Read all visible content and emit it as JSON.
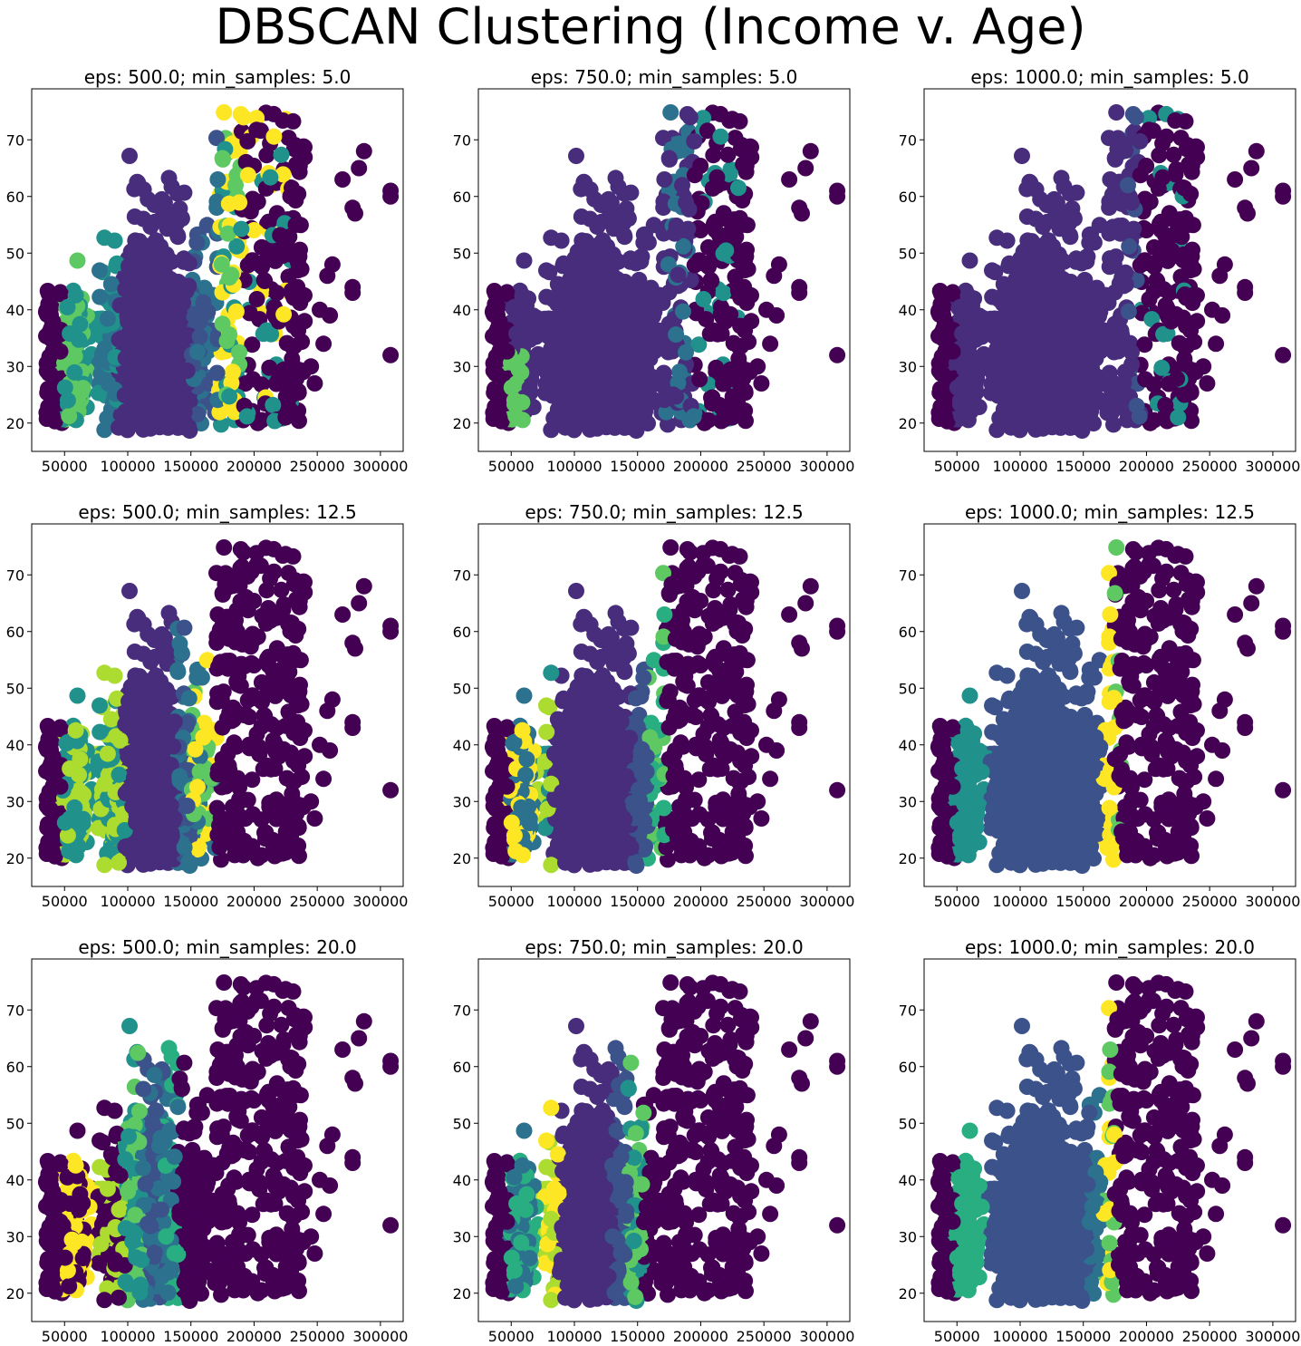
{
  "title": "DBSCAN Clustering (Income v. Age)",
  "palette": {
    "noise": "#440154",
    "c1": "#472d7b",
    "c2": "#3b528b",
    "c3": "#2c728e",
    "c4": "#21918c",
    "c5": "#28ae80",
    "c6": "#5ec962",
    "c7": "#addc30",
    "c8": "#fde725"
  },
  "chart_data": [
    {
      "type": "scatter",
      "title": "eps: 500.0; min_samples: 5.0",
      "eps": 500.0,
      "min_samples": 5.0,
      "xlim": [
        24000,
        318000
      ],
      "ylim": [
        15,
        79
      ],
      "xticks": [
        "50000",
        "100000",
        "150000",
        "200000",
        "250000",
        "300000"
      ],
      "yticks": [
        "20",
        "30",
        "40",
        "50",
        "60",
        "70"
      ],
      "scheme": "wide_multi"
    },
    {
      "type": "scatter",
      "title": "eps: 750.0; min_samples: 5.0",
      "eps": 750.0,
      "min_samples": 5.0,
      "xlim": [
        24000,
        318000
      ],
      "ylim": [
        15,
        79
      ],
      "xticks": [
        "50000",
        "100000",
        "150000",
        "200000",
        "250000",
        "300000"
      ],
      "yticks": [
        "20",
        "30",
        "40",
        "50",
        "60",
        "70"
      ],
      "scheme": "wide_single"
    },
    {
      "type": "scatter",
      "title": "eps: 1000.0; min_samples: 5.0",
      "eps": 1000.0,
      "min_samples": 5.0,
      "xlim": [
        24000,
        318000
      ],
      "ylim": [
        15,
        79
      ],
      "xticks": [
        "50000",
        "100000",
        "150000",
        "200000",
        "250000",
        "300000"
      ],
      "yticks": [
        "20",
        "30",
        "40",
        "50",
        "60",
        "70"
      ],
      "scheme": "wide_single_blue"
    },
    {
      "type": "scatter",
      "title": "eps: 500.0; min_samples: 12.5",
      "eps": 500.0,
      "min_samples": 12.5,
      "xlim": [
        24000,
        318000
      ],
      "ylim": [
        15,
        79
      ],
      "xticks": [
        "50000",
        "100000",
        "150000",
        "200000",
        "250000",
        "300000"
      ],
      "yticks": [
        "20",
        "30",
        "40",
        "50",
        "60",
        "70"
      ],
      "scheme": "mid_narrow"
    },
    {
      "type": "scatter",
      "title": "eps: 750.0; min_samples: 12.5",
      "eps": 750.0,
      "min_samples": 12.5,
      "xlim": [
        24000,
        318000
      ],
      "ylim": [
        15,
        79
      ],
      "xticks": [
        "50000",
        "100000",
        "150000",
        "200000",
        "250000",
        "300000"
      ],
      "yticks": [
        "20",
        "30",
        "40",
        "50",
        "60",
        "70"
      ],
      "scheme": "mid_medium"
    },
    {
      "type": "scatter",
      "title": "eps: 1000.0; min_samples: 12.5",
      "eps": 1000.0,
      "min_samples": 12.5,
      "xlim": [
        24000,
        318000
      ],
      "ylim": [
        15,
        79
      ],
      "xticks": [
        "50000",
        "100000",
        "150000",
        "200000",
        "250000",
        "300000"
      ],
      "yticks": [
        "20",
        "30",
        "40",
        "50",
        "60",
        "70"
      ],
      "scheme": "mid_wide_yellow"
    },
    {
      "type": "scatter",
      "title": "eps: 500.0; min_samples: 20.0",
      "eps": 500.0,
      "min_samples": 20.0,
      "xlim": [
        24000,
        318000
      ],
      "ylim": [
        15,
        79
      ],
      "xticks": [
        "50000",
        "100000",
        "150000",
        "200000",
        "250000",
        "300000"
      ],
      "yticks": [
        "20",
        "30",
        "40",
        "50",
        "60",
        "70"
      ],
      "scheme": "strict_narrow"
    },
    {
      "type": "scatter",
      "title": "eps: 750.0; min_samples: 20.0",
      "eps": 750.0,
      "min_samples": 20.0,
      "xlim": [
        24000,
        318000
      ],
      "ylim": [
        15,
        79
      ],
      "xticks": [
        "50000",
        "100000",
        "150000",
        "200000",
        "250000",
        "300000"
      ],
      "yticks": [
        "20",
        "30",
        "40",
        "50",
        "60",
        "70"
      ],
      "scheme": "strict_medium"
    },
    {
      "type": "scatter",
      "title": "eps: 1000.0; min_samples: 20.0",
      "eps": 1000.0,
      "min_samples": 20.0,
      "xlim": [
        24000,
        318000
      ],
      "ylim": [
        15,
        79
      ],
      "xticks": [
        "50000",
        "100000",
        "150000",
        "200000",
        "250000",
        "300000"
      ],
      "yticks": [
        "20",
        "30",
        "40",
        "50",
        "60",
        "70"
      ],
      "scheme": "strict_wide"
    }
  ]
}
